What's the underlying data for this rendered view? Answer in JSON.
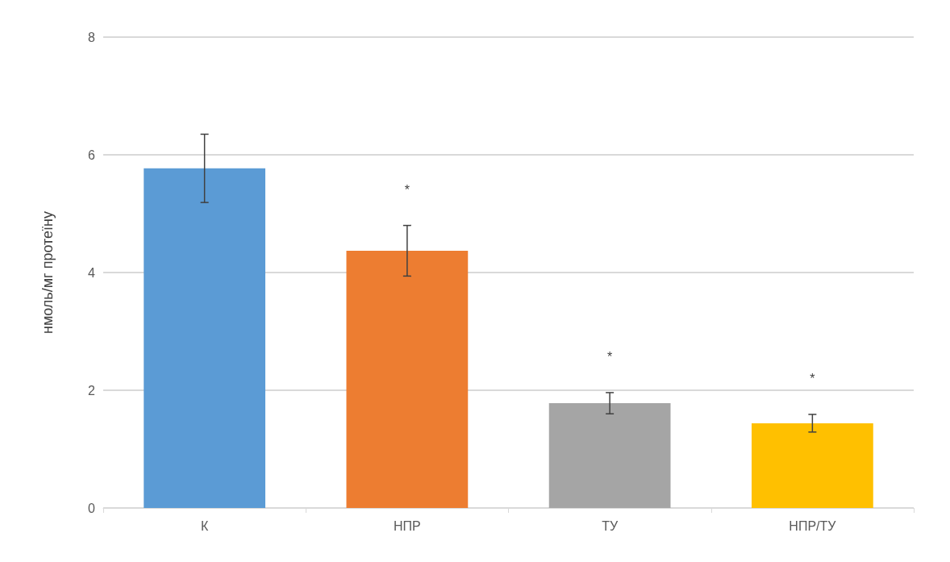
{
  "chart_data": {
    "type": "bar",
    "ylabel": "нмоль/мг протеїну",
    "categories": [
      "К",
      "НПР",
      "ТУ",
      "НПР/ТУ"
    ],
    "values": [
      5.77,
      4.37,
      1.78,
      1.44
    ],
    "colors": [
      "#5b9bd5",
      "#ed7d31",
      "#a5a5a5",
      "#ffc000"
    ],
    "errors": [
      0.58,
      0.43,
      0.18,
      0.15
    ],
    "ylim": [
      0,
      8
    ],
    "yticks": [
      0,
      2,
      4,
      6,
      8
    ],
    "grid": "y",
    "annotations": [
      "*",
      "*",
      "*"
    ]
  }
}
